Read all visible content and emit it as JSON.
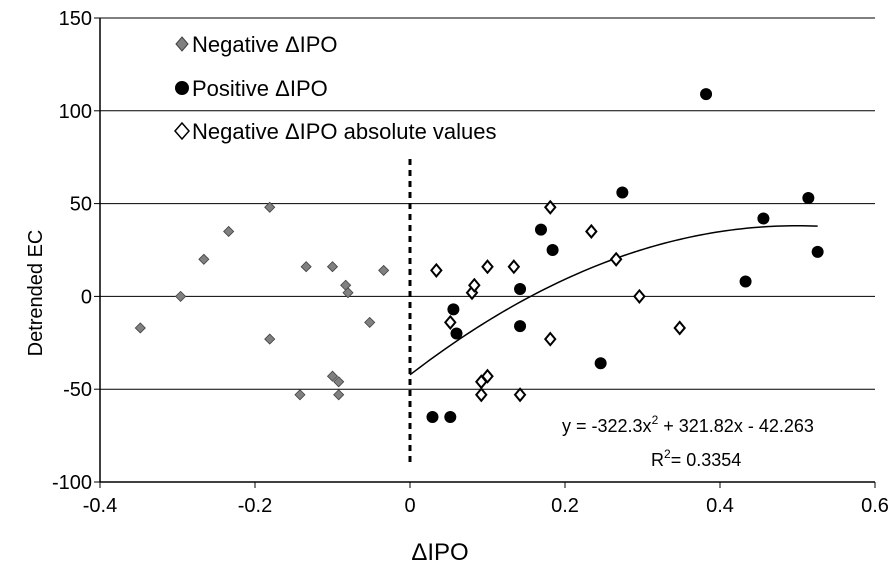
{
  "chart_data": {
    "type": "scatter",
    "xlabel": "ΔIPO",
    "ylabel": "Detrended EC",
    "xlim": [
      -0.4,
      0.6
    ],
    "ylim": [
      -100,
      150
    ],
    "x_ticks": [
      -0.4,
      -0.2,
      0,
      0.2,
      0.4,
      0.6
    ],
    "x_tick_labels": [
      "-0.4",
      "-0.2",
      "0",
      "0.2",
      "0.4",
      "0.6"
    ],
    "y_ticks": [
      -100,
      -50,
      0,
      50,
      100,
      150
    ],
    "y_tick_labels": [
      "-100",
      "-50",
      "0",
      "50",
      "100",
      "150"
    ],
    "grid": "horizontal",
    "legend_position": "top-left",
    "vertical_reference_line": {
      "x": 0,
      "y_from": -90,
      "y_to": 74,
      "style": "dashed"
    },
    "series": [
      {
        "name": "Negative ΔIPO",
        "marker": "diamond",
        "color": "#808080",
        "points": [
          [
            -0.348,
            -17
          ],
          [
            -0.296,
            0
          ],
          [
            -0.266,
            20
          ],
          [
            -0.234,
            35
          ],
          [
            -0.181,
            48
          ],
          [
            -0.181,
            -23
          ],
          [
            -0.142,
            -53
          ],
          [
            -0.134,
            16
          ],
          [
            -0.1,
            16
          ],
          [
            -0.1,
            -43
          ],
          [
            -0.092,
            -46
          ],
          [
            -0.092,
            -53
          ],
          [
            -0.083,
            6
          ],
          [
            -0.08,
            2
          ],
          [
            -0.052,
            -14
          ],
          [
            -0.034,
            14
          ]
        ]
      },
      {
        "name": "Positive ΔIPO",
        "marker": "circle",
        "color": "#000000",
        "points": [
          [
            0.029,
            -65
          ],
          [
            0.052,
            -65
          ],
          [
            0.056,
            -7
          ],
          [
            0.06,
            -20
          ],
          [
            0.142,
            4
          ],
          [
            0.142,
            -16
          ],
          [
            0.169,
            36
          ],
          [
            0.184,
            25
          ],
          [
            0.246,
            -36
          ],
          [
            0.274,
            56
          ],
          [
            0.382,
            109
          ],
          [
            0.433,
            8
          ],
          [
            0.456,
            42
          ],
          [
            0.514,
            53
          ],
          [
            0.526,
            24
          ]
        ]
      },
      {
        "name": "Negative ΔIPO absolute values",
        "marker": "open-diamond",
        "color": "#000000",
        "points": [
          [
            0.034,
            14
          ],
          [
            0.052,
            -14
          ],
          [
            0.08,
            2
          ],
          [
            0.083,
            6
          ],
          [
            0.092,
            -46
          ],
          [
            0.092,
            -53
          ],
          [
            0.1,
            16
          ],
          [
            0.1,
            -43
          ],
          [
            0.134,
            16
          ],
          [
            0.142,
            -53
          ],
          [
            0.181,
            48
          ],
          [
            0.181,
            -23
          ],
          [
            0.234,
            35
          ],
          [
            0.266,
            20
          ],
          [
            0.296,
            0
          ],
          [
            0.348,
            -17
          ]
        ]
      }
    ],
    "trendline": {
      "type": "polynomial",
      "coefficients": {
        "a": -322.3,
        "b": 321.82,
        "c": -42.263
      },
      "x_range": [
        0,
        0.526
      ],
      "equation_label": {
        "prefix": "y = -322.3x",
        "exponent": "2",
        "suffix": " + 321.82x - 42.263"
      },
      "r2_label": {
        "prefix": "R",
        "exponent": "2",
        "suffix": "= 0.3354"
      }
    }
  }
}
